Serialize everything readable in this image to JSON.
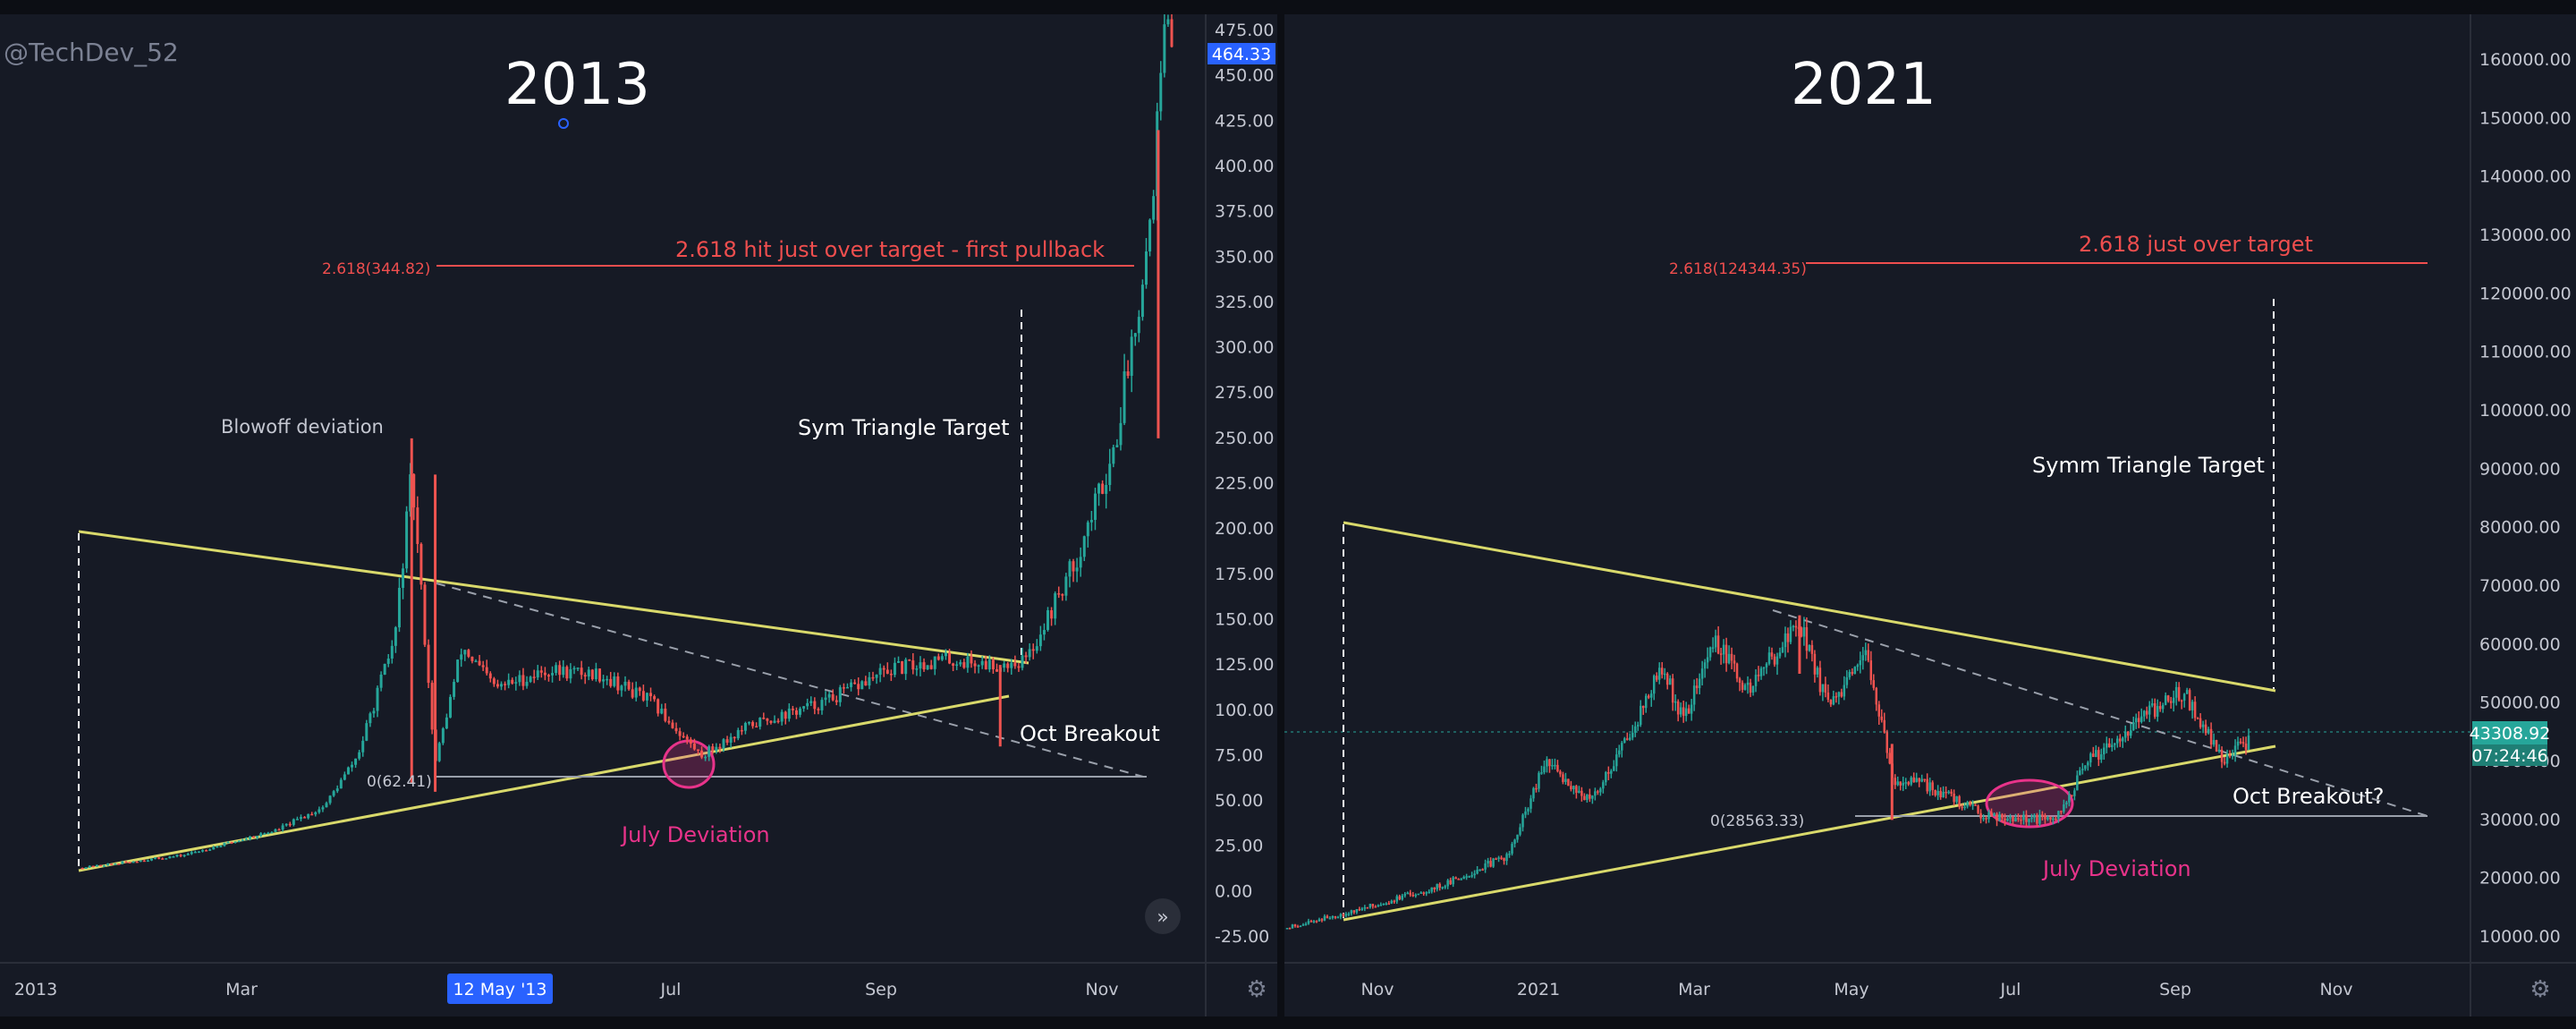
{
  "watermark": "@TechDev_52",
  "colors": {
    "background": "#161a25",
    "up": "#26a69a",
    "down": "#ef5350",
    "trendline": "#d9d96b",
    "fib": "#ef4e4e",
    "deviation": "#e8338a",
    "price_tag": "#2962ff",
    "price_tag_green": "#26a69a"
  },
  "icons": {
    "settings": "gear-icon",
    "scroll": "double-chevron-right-icon"
  },
  "chart_data": [
    {
      "type": "line",
      "panel_title": "2013",
      "series": [
        {
          "values_style": "candlestick",
          "points": [
            [
              "Jan 2013",
              13
            ],
            [
              "Feb 2013",
              20
            ],
            [
              "Mar 1 2013",
              34
            ],
            [
              "Mar 15 2013",
              47
            ],
            [
              "Mar 25 2013",
              75
            ],
            [
              "Apr 5 2013",
              140
            ],
            [
              "Apr 10 2013",
              230
            ],
            [
              "Apr 17 2013",
              70
            ],
            [
              "Apr 25 2013",
              135
            ],
            [
              "May 5 2013",
              112
            ],
            [
              "May 20 2013",
              122
            ],
            [
              "Jun 5 2013",
              120
            ],
            [
              "Jun 20 2013",
              105
            ],
            [
              "Jul 5 2013",
              75
            ],
            [
              "Jul 20 2013",
              92
            ],
            [
              "Aug 10 2013",
              104
            ],
            [
              "Aug 30 2013",
              122
            ],
            [
              "Sep 15 2013",
              128
            ],
            [
              "Oct 1 2013",
              125
            ],
            [
              "Oct 10 2013",
              128
            ],
            [
              "Oct 25 2013",
              185
            ],
            [
              "Nov 5 2013",
              245
            ],
            [
              "Nov 15 2013",
              360
            ],
            [
              "Nov 20 2013",
              475
            ],
            [
              "Nov 22 2013",
              464
            ]
          ]
        }
      ],
      "y_axis": {
        "ticks": [
          "475.00",
          "450.00",
          "425.00",
          "400.00",
          "375.00",
          "350.00",
          "325.00",
          "300.00",
          "275.00",
          "250.00",
          "225.00",
          "200.00",
          "175.00",
          "150.00",
          "125.00",
          "100.00",
          "75.00",
          "50.00",
          "25.00",
          "0.00",
          "-25.00"
        ],
        "range": [
          -35,
          485
        ]
      },
      "x_axis": {
        "ticks": [
          "2013",
          "Mar",
          "Jul",
          "Sep",
          "Nov"
        ],
        "cursor_label": "12 May '13"
      },
      "last_price": "464.33",
      "fib_label": "2.618(344.82)",
      "zero_label": "0(62.41)",
      "annotations": {
        "fib_note": "2.618 hit just over target - first pullback",
        "blowoff": "Blowoff deviation",
        "target": "Sym Triangle Target",
        "breakout": "Oct Breakout",
        "deviation": "July Deviation"
      }
    },
    {
      "type": "line",
      "panel_title": "2021",
      "series": [
        {
          "values_style": "candlestick",
          "points": [
            [
              "Oct 2020",
              11500
            ],
            [
              "Nov 2020",
              15000
            ],
            [
              "Dec 2020",
              19000
            ],
            [
              "Dec 25 2020",
              24000
            ],
            [
              "Jan 8 2021",
              40000
            ],
            [
              "Jan 25 2021",
              33000
            ],
            [
              "Feb 10 2021",
              46000
            ],
            [
              "Feb 21 2021",
              56000
            ],
            [
              "Mar 1 2021",
              47000
            ],
            [
              "Mar 13 2021",
              61000
            ],
            [
              "Mar 25 2021",
              52000
            ],
            [
              "Apr 14 2021",
              64000
            ],
            [
              "Apr 25 2021",
              49000
            ],
            [
              "May 10 2021",
              58000
            ],
            [
              "May 19 2021",
              37000
            ],
            [
              "Jun 1 2021",
              36000
            ],
            [
              "Jun 22 2021",
              31000
            ],
            [
              "Jul 20 2021",
              29800
            ],
            [
              "Aug 1 2021",
              40000
            ],
            [
              "Aug 20 2021",
              47000
            ],
            [
              "Sep 6 2021",
              52000
            ],
            [
              "Sep 21 2021",
              40500
            ],
            [
              "Oct 1 2021",
              43308
            ]
          ]
        }
      ],
      "y_axis": {
        "ticks": [
          "160000.00",
          "150000.00",
          "140000.00",
          "130000.00",
          "120000.00",
          "110000.00",
          "100000.00",
          "90000.00",
          "80000.00",
          "70000.00",
          "60000.00",
          "50000.00",
          "40000.00",
          "30000.00",
          "20000.00",
          "10000.00"
        ],
        "range": [
          -2000,
          166000
        ]
      },
      "x_axis": {
        "ticks": [
          "Nov",
          "2021",
          "Mar",
          "May",
          "Jul",
          "Sep",
          "Nov"
        ]
      },
      "last_price": "43308.92",
      "countdown": "07:24:46",
      "fib_label": "2.618(124344.35)",
      "zero_label": "0(28563.33)",
      "annotations": {
        "fib_note": "2.618 just over target",
        "target": "Symm Triangle Target",
        "breakout": "Oct Breakout?",
        "deviation": "July Deviation"
      }
    }
  ]
}
